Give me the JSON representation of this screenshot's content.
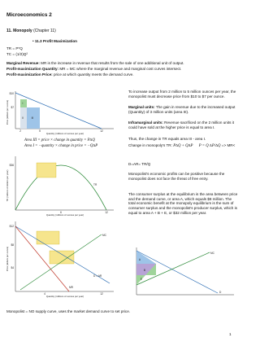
{
  "header": {
    "title": "Microeconomics 2",
    "section": "11. Monopoly",
    "section_ref": "(Chapter 11)"
  },
  "subsection": "11.3 Profit Maximization",
  "formulas": [
    "TR = P*Q",
    "TC = (1/2)Q²"
  ],
  "definitions": [
    {
      "term": "Marginal Revenue:",
      "text": "MR is the increase in revenue that results from the sale of one additional unit of output."
    },
    {
      "term": "Profit-maximization Quantity:",
      "text": "MR = MC where the marginal revenue and marginal cost curves intersect."
    },
    {
      "term": "Profit-maximization Price:",
      "text": "price at which quantity meets the demand curve."
    }
  ],
  "right_column": {
    "intro": "To increase output from 2 million to 5 million ounces per year, the monopolist must decrease price from $10 to $7 per ounce.",
    "marginal": {
      "term": "Marginal units:",
      "text": "The gain in revenue due to the increased output (Quantity) of 3 million units (area III)."
    },
    "inframarginal": {
      "term": "Inframarginal units:",
      "text": "Revenue sacrificed on the 2 million units it could have sold at the higher price is equal to area I."
    },
    "thus": "Thus, the change in TR equals area III - area I.",
    "change": "Change in monopoly's TR:",
    "change_formula": "P∆Q + Q∆P",
    "mr_formula": "P = Q ∆P/∆Q",
    "mr_result": "=> MR<",
    "ar": "D=AR= TR/Q",
    "profits": "Monopolist's economic profits can be positive because the monopolist does not face the threat of free entry.",
    "surplus": "The consumer surplus at the equilibrium is the area between price and the demand curve, or area A, which equals $8 million. The total economic benefit at the monopoly equilibrium is the sum of consumer surplus and the monopolist's producer surplus, which is equal to area A + B + E, or $32 million per year."
  },
  "area_formulas": [
    "Area III = price × change in quantity = P∆Q",
    "Area I = −quantity × change in price = −Q∆P"
  ],
  "figures": [
    {
      "y_label": "Price (dollars per ounce)",
      "x_label": "Quantity (millions of ounces per year)",
      "ticks": [
        "$10",
        "$7",
        "2",
        "5",
        "12"
      ],
      "areas": [
        "I",
        "II",
        "III"
      ]
    },
    {
      "y_label": "TR (millions of dollars per year)",
      "x_label": "Quantity (millions of ounces per year)",
      "ticks": [
        "$36",
        "6",
        "12"
      ],
      "curve": "TR"
    },
    {
      "y_label": "Price (dollars per ounce)",
      "x_label": "Quantity (millions of ounces per year)",
      "ticks": [
        "$12",
        "$8",
        "$4",
        "4",
        "12"
      ],
      "curves": [
        "MC",
        "MR",
        "D = AR"
      ]
    },
    {
      "areas": [
        "A",
        "B",
        "E"
      ],
      "curves": [
        "MC",
        "D"
      ]
    }
  ],
  "footer_note": "Monopolist = NO supply curve, uses the market demand curve to set price.",
  "page_number": "1"
}
